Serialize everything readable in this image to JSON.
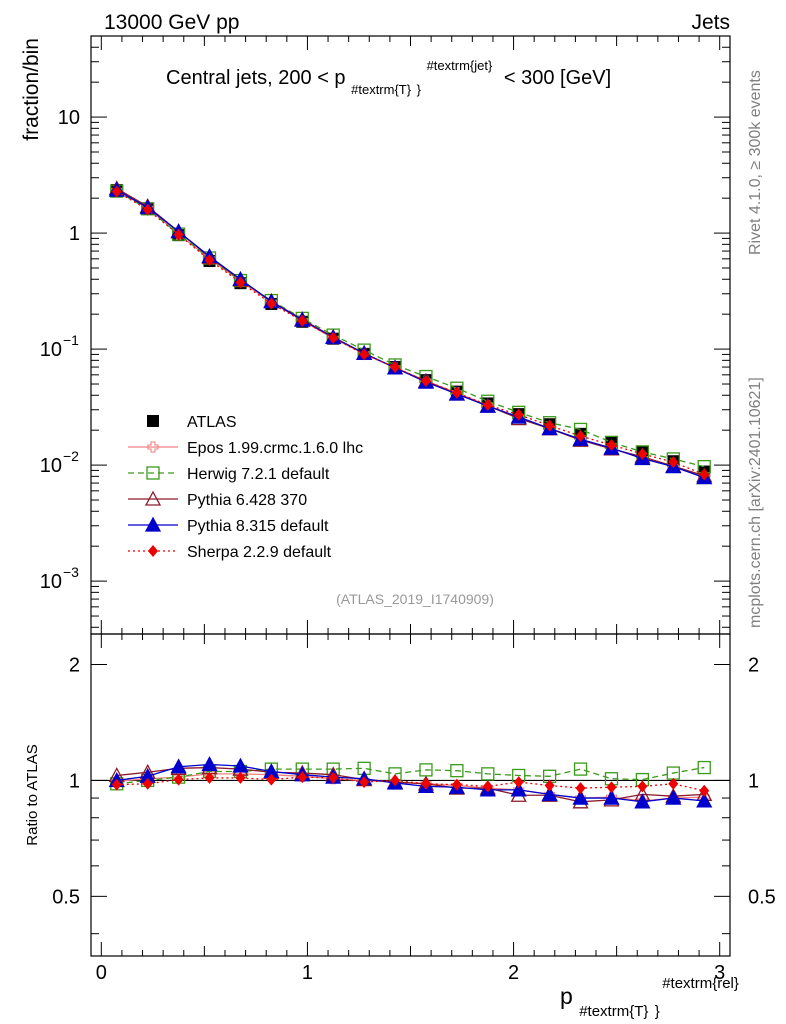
{
  "header": {
    "left": "13000 GeV pp",
    "right": "Jets",
    "side_top": "Rivet 4.1.0, ≥ 300k events",
    "side_bottom": "mcplots.cern.ch [arXiv:2401.10621]"
  },
  "chart_data": [
    {
      "type": "line",
      "panel": "main",
      "title": "Central jets, 200 < p_{#textrm{T}}^{#textrm{jet}} < 300 [GeV]",
      "title_parts": {
        "pre": "Central jets, 200 < p",
        "sub": "#textrm{T}",
        "sup": "#textrm{jet}",
        "post": "< 300 [GeV]"
      },
      "ylabel": "fraction/bin",
      "yscale": "log",
      "ylim": [
        0.00035,
        50
      ],
      "xlim": [
        -0.05,
        3.05
      ],
      "watermark": "(ATLAS_2019_I1740909)",
      "ytick_labels": [
        {
          "value": 10,
          "label": "10",
          "sup": ""
        },
        {
          "value": 1,
          "label": "1",
          "sup": ""
        },
        {
          "value": 0.1,
          "label": "10",
          "sup": "−1"
        },
        {
          "value": 0.01,
          "label": "10",
          "sup": "−2"
        },
        {
          "value": 0.001,
          "label": "10",
          "sup": "−3"
        }
      ],
      "x": [
        0.075,
        0.225,
        0.375,
        0.525,
        0.675,
        0.825,
        0.975,
        1.125,
        1.275,
        1.425,
        1.575,
        1.725,
        1.875,
        2.025,
        2.175,
        2.325,
        2.475,
        2.625,
        2.775,
        2.925
      ],
      "series": [
        {
          "name": "ATLAS",
          "color": "#000000",
          "marker": "square-filled",
          "line": "none",
          "values": [
            2.35,
            1.62,
            0.96,
            0.575,
            0.37,
            0.245,
            0.172,
            0.123,
            0.091,
            0.07,
            0.054,
            0.043,
            0.034,
            0.0275,
            0.0225,
            0.0186,
            0.0155,
            0.0129,
            0.0108,
            0.0088
          ]
        },
        {
          "name": "Epos 1.99.crmc.1.6.0 lhc",
          "color": "#f08080",
          "marker": "cross-open",
          "line": "solid",
          "values": [
            2.34,
            1.64,
            0.98,
            0.6,
            0.385,
            0.254,
            0.176,
            0.124,
            0.091,
            0.069,
            0.053,
            0.042,
            0.0325,
            0.026,
            0.0207,
            0.0167,
            0.014,
            0.0114,
            0.0097,
            0.008
          ]
        },
        {
          "name": "Herwig 7.2.1 default",
          "color": "#3a9a1a",
          "marker": "square-open",
          "line": "dashed",
          "values": [
            2.3,
            1.62,
            0.98,
            0.61,
            0.39,
            0.262,
            0.184,
            0.132,
            0.098,
            0.073,
            0.058,
            0.046,
            0.0355,
            0.0285,
            0.0232,
            0.0203,
            0.0157,
            0.013,
            0.0113,
            0.0097
          ]
        },
        {
          "name": "Pythia 6.428 370",
          "color": "#8b1a2a",
          "marker": "triangle-open",
          "line": "solid",
          "values": [
            2.42,
            1.7,
            1.03,
            0.62,
            0.395,
            0.258,
            0.18,
            0.127,
            0.092,
            0.069,
            0.053,
            0.041,
            0.0325,
            0.0252,
            0.0206,
            0.0164,
            0.0138,
            0.0118,
            0.0098,
            0.0081
          ]
        },
        {
          "name": "Pythia 8.315 default",
          "color": "#0000cc",
          "marker": "triangle-filled",
          "line": "solid",
          "values": [
            2.35,
            1.66,
            1.03,
            0.63,
            0.4,
            0.257,
            0.178,
            0.126,
            0.092,
            0.069,
            0.052,
            0.041,
            0.0322,
            0.026,
            0.0207,
            0.0167,
            0.014,
            0.0114,
            0.0097,
            0.0078
          ]
        },
        {
          "name": "Sherpa 2.2.9 default",
          "color": "#ee0000",
          "marker": "diamond-filled",
          "line": "dotted",
          "values": [
            2.28,
            1.59,
            0.97,
            0.585,
            0.375,
            0.247,
            0.175,
            0.125,
            0.09,
            0.07,
            0.053,
            0.042,
            0.033,
            0.0272,
            0.0219,
            0.0178,
            0.0149,
            0.0125,
            0.0106,
            0.0083
          ]
        }
      ]
    },
    {
      "type": "line",
      "panel": "ratio",
      "ylabel": "Ratio to ATLAS",
      "yscale": "log",
      "ylim": [
        0.35,
        2.4
      ],
      "xlim": [
        -0.05,
        3.05
      ],
      "reference": 1,
      "ytick_labels": [
        {
          "value": 2,
          "label": "2"
        },
        {
          "value": 1,
          "label": "1"
        },
        {
          "value": 0.5,
          "label": "0.5"
        }
      ],
      "x": [
        0.075,
        0.225,
        0.375,
        0.525,
        0.675,
        0.825,
        0.975,
        1.125,
        1.275,
        1.425,
        1.575,
        1.725,
        1.875,
        2.025,
        2.175,
        2.325,
        2.475,
        2.625,
        2.775,
        2.925
      ],
      "series": [
        {
          "name": "Epos 1.99.crmc.1.6.0 lhc",
          "color": "#f08080",
          "marker": "cross-open",
          "line": "solid",
          "values": [
            0.995,
            1.01,
            1.02,
            1.04,
            1.04,
            1.035,
            1.025,
            1.01,
            1.0,
            0.99,
            0.98,
            0.97,
            0.955,
            0.945,
            0.92,
            0.9,
            0.905,
            0.885,
            0.9,
            0.905
          ]
        },
        {
          "name": "Herwig 7.2.1 default",
          "color": "#3a9a1a",
          "marker": "square-open",
          "line": "dashed",
          "values": [
            0.98,
            1.0,
            1.02,
            1.055,
            1.055,
            1.07,
            1.07,
            1.07,
            1.075,
            1.04,
            1.065,
            1.06,
            1.04,
            1.03,
            1.025,
            1.07,
            1.01,
            1.005,
            1.045,
            1.08
          ]
        },
        {
          "name": "Pythia 6.428 370",
          "color": "#8b1a2a",
          "marker": "triangle-open",
          "line": "solid",
          "values": [
            1.03,
            1.05,
            1.075,
            1.08,
            1.07,
            1.05,
            1.045,
            1.035,
            1.005,
            0.99,
            0.98,
            0.955,
            0.955,
            0.915,
            0.915,
            0.88,
            0.89,
            0.92,
            0.91,
            0.92
          ]
        },
        {
          "name": "Pythia 8.315 default",
          "color": "#0000cc",
          "marker": "triangle-filled",
          "line": "solid",
          "values": [
            1.0,
            1.025,
            1.085,
            1.1,
            1.09,
            1.055,
            1.035,
            1.02,
            1.01,
            0.985,
            0.965,
            0.96,
            0.945,
            0.945,
            0.92,
            0.9,
            0.9,
            0.88,
            0.9,
            0.885
          ]
        },
        {
          "name": "Sherpa 2.2.9 default",
          "color": "#ee0000",
          "marker": "diamond-filled",
          "line": "dotted",
          "values": [
            0.975,
            0.98,
            1.005,
            1.015,
            1.015,
            1.005,
            1.02,
            1.015,
            0.99,
            1.0,
            0.98,
            0.975,
            0.965,
            0.99,
            0.97,
            0.955,
            0.96,
            0.965,
            0.98,
            0.94
          ]
        }
      ]
    }
  ],
  "x_axis": {
    "tick_labels": [
      {
        "value": 0,
        "label": "0"
      },
      {
        "value": 1,
        "label": "1"
      },
      {
        "value": 2,
        "label": "2"
      },
      {
        "value": 3,
        "label": "3"
      }
    ],
    "label_parts": {
      "base": "p",
      "sub": "#textrm{T}",
      "sup": "#textrm{rel}"
    }
  }
}
